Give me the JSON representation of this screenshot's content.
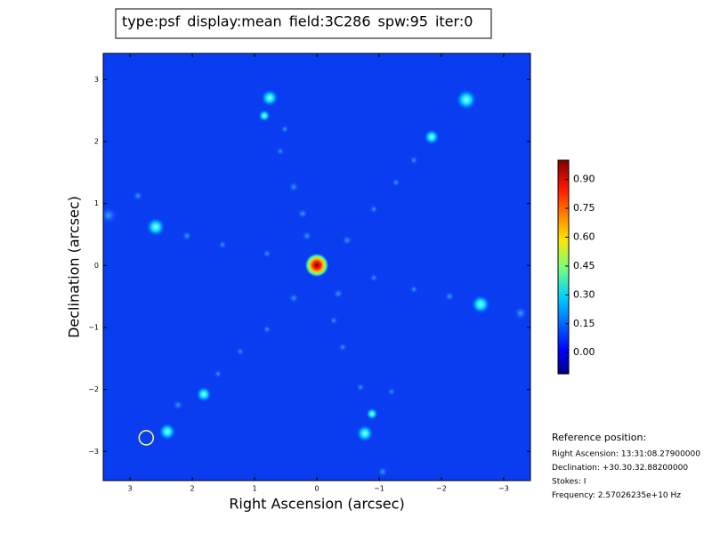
{
  "chart_data": {
    "type": "image",
    "title_parts": [
      {
        "text": "type:psf",
        "color": "#000000"
      },
      {
        "text": "display:mean",
        "color": "#ff0000"
      },
      {
        "text": "field:3C286",
        "color": "#000000"
      },
      {
        "text": "spw:95",
        "color": "#000000"
      },
      {
        "text": "iter:0",
        "color": "#000000"
      }
    ],
    "xlabel": "Right Ascension (arcsec)",
    "ylabel": "Declination (arcsec)",
    "xlim": [
      3.43,
      -3.43
    ],
    "ylim": [
      -3.47,
      3.42
    ],
    "xticks": [
      3,
      2,
      1,
      0,
      {
        "value": -1,
        "label": "−1"
      },
      {
        "value": -2,
        "label": "−2"
      },
      {
        "value": -3,
        "label": "−3"
      }
    ],
    "yticks": [
      {
        "value": -3,
        "label": "−3"
      },
      {
        "value": -2,
        "label": "−2"
      },
      {
        "value": -1,
        "label": "−1"
      },
      0,
      1,
      2,
      3
    ],
    "colormap": "jet",
    "clim": [
      -0.11,
      1.0
    ],
    "cticks": [
      {
        "value": 0,
        "label": "0.00"
      },
      {
        "value": 0.15,
        "label": "0.15"
      },
      {
        "value": 0.3,
        "label": "0.30"
      },
      {
        "value": 0.45,
        "label": "0.45"
      },
      {
        "value": 0.6,
        "label": "0.60"
      },
      {
        "value": 0.75,
        "label": "0.75"
      },
      {
        "value": 0.9,
        "label": "0.90"
      }
    ],
    "beam_marker": {
      "x": 2.74,
      "y": -2.78,
      "color": "#ffff66"
    },
    "reference": {
      "heading": "Reference position:",
      "lines": [
        "Right Ascension: 13:31:08.27900000",
        "Declination: +30.30.32.88200000",
        "Stokes: I",
        "Frequency: 2.57026235e+10 Hz"
      ]
    }
  }
}
